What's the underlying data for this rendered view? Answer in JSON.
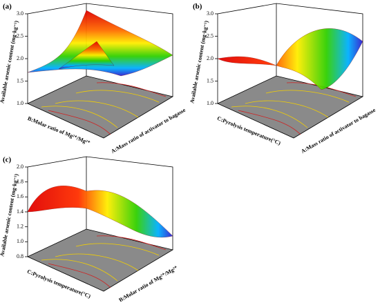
{
  "chart_data": [
    {
      "type": "surface3d",
      "panel": "(a)",
      "zlabel": "Available arsenic content (mg·kg⁻¹)",
      "xlabel": "A:Mass ratio of activator to bagasse",
      "ylabel": "B:Molar ratio of Mg²⁺/Mg²⁺",
      "zlim": [
        1.0,
        3.0
      ],
      "zticks": [
        {
          "value": 1,
          "label": "1.0"
        },
        1.5,
        {
          "value": 2,
          "label": "2.0"
        },
        2.5,
        {
          "value": 3,
          "label": "3.0"
        }
      ]
    },
    {
      "type": "surface3d",
      "panel": "(b)",
      "zlabel": "Available arsenic content (mg·kg⁻¹)",
      "xlabel": "A:Mass ratio of activator to bagasse",
      "ylabel": "C:Pyrolysis temperature(°C)",
      "zlim": [
        1.0,
        3.0
      ],
      "zticks": [
        {
          "value": 1,
          "label": "1.0"
        },
        1.5,
        {
          "value": 2,
          "label": "2.0"
        },
        2.5,
        {
          "value": 3,
          "label": "3.0"
        }
      ]
    },
    {
      "type": "surface3d",
      "panel": "(c)",
      "zlabel": "Available arsenic content (mg·kg⁻¹)",
      "xlabel": "B:Molar ratio of Mg²⁺/Mg²⁺",
      "ylabel": "C:Pyrolysis temperature(°C)",
      "zlim": [
        0.8,
        2.0
      ],
      "zticks": [
        0.8,
        {
          "value": 1,
          "label": "1.0"
        },
        1.2,
        1.4,
        1.6,
        1.8,
        {
          "value": 2,
          "label": "2.0"
        }
      ]
    }
  ]
}
